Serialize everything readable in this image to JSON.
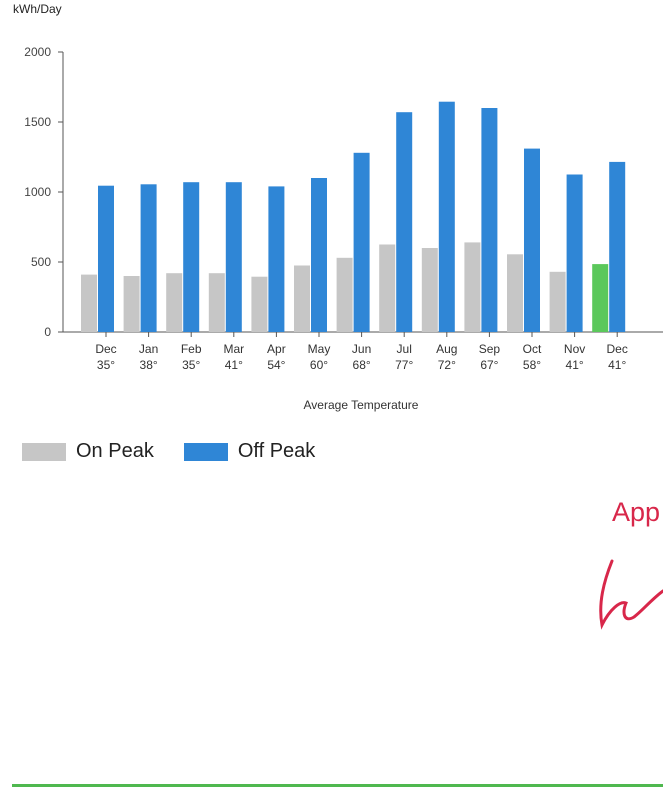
{
  "chart_data": {
    "type": "bar",
    "ylabel": "kWh/Day",
    "xlabel": "Average Temperature",
    "ylim": [
      0,
      2000
    ],
    "yticks": [
      "0",
      "500",
      "1000",
      "1500",
      "2000"
    ],
    "categories": [
      "Dec",
      "Jan",
      "Feb",
      "Mar",
      "Apr",
      "May",
      "Jun",
      "Jul",
      "Aug",
      "Sep",
      "Oct",
      "Nov",
      "Dec"
    ],
    "temperatures": [
      "35°",
      "38°",
      "35°",
      "41°",
      "54°",
      "60°",
      "68°",
      "77°",
      "72°",
      "67°",
      "58°",
      "41°",
      "41°"
    ],
    "series": [
      {
        "name": "On Peak",
        "color": "#c6c6c6",
        "values": [
          410,
          400,
          420,
          420,
          395,
          475,
          530,
          625,
          600,
          640,
          555,
          430,
          485
        ]
      },
      {
        "name": "Off Peak",
        "color": "#2f86d6",
        "values": [
          1045,
          1055,
          1070,
          1070,
          1040,
          1100,
          1280,
          1570,
          1645,
          1600,
          1310,
          1125,
          1215
        ]
      }
    ],
    "highlight": {
      "index": 12,
      "series": "On Peak",
      "color": "#5bc85b"
    },
    "grid": false,
    "legend_position": "bottom-left"
  },
  "annotation": {
    "text": "App",
    "color": "#d8274a"
  },
  "footer_line_color": "#4fb84f"
}
